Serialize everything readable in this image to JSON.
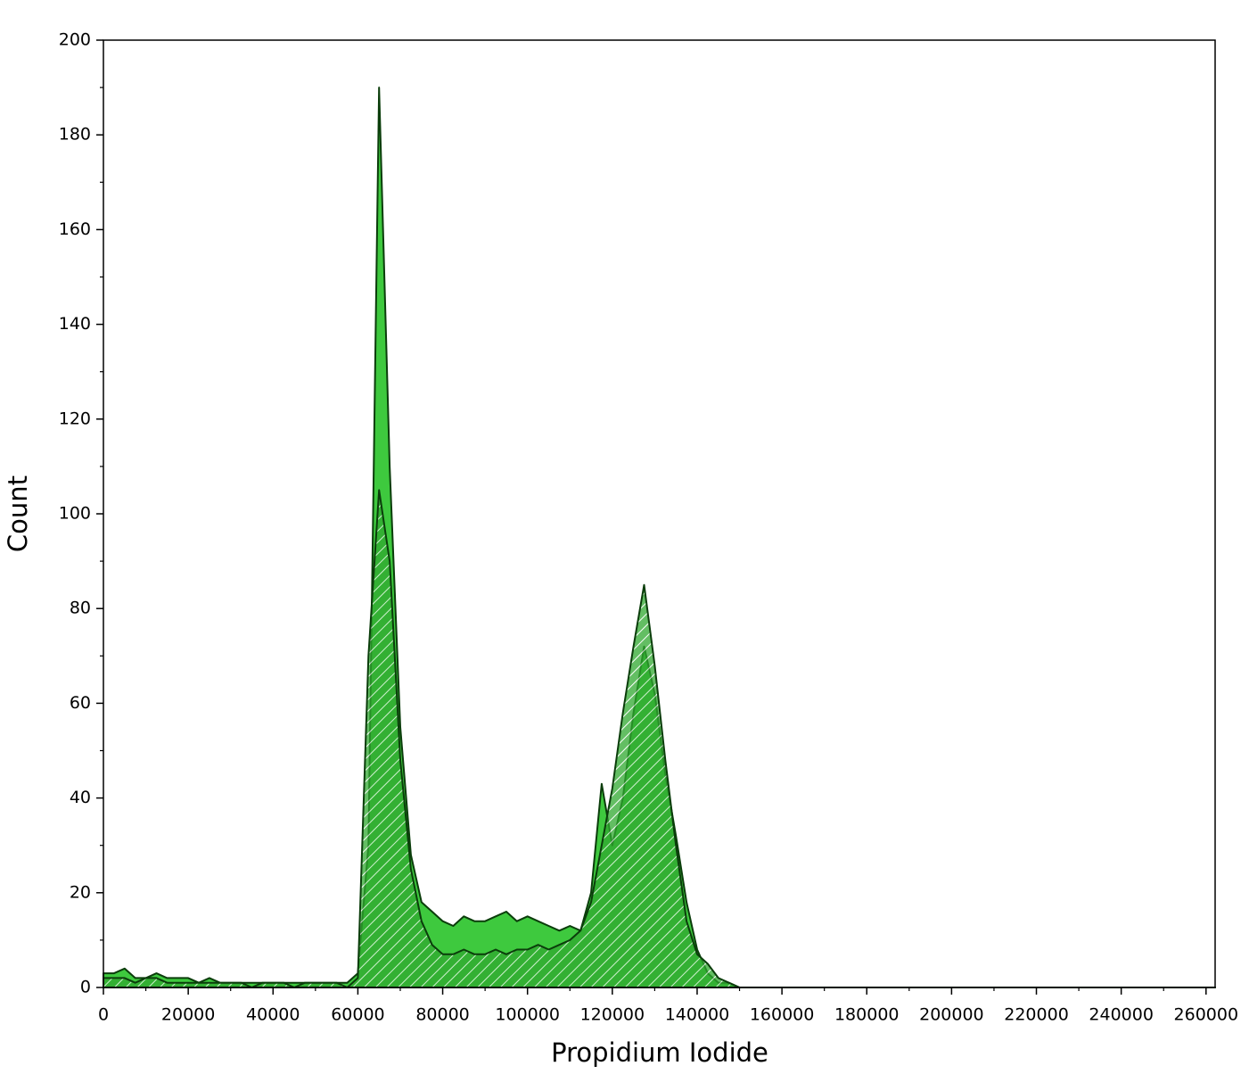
{
  "chart_data": {
    "type": "area",
    "xlabel": "Propidium Iodide",
    "ylabel": "Count",
    "x": [
      0,
      2500,
      5000,
      7500,
      10000,
      12500,
      15000,
      17500,
      20000,
      22500,
      25000,
      27500,
      30000,
      32500,
      35000,
      37500,
      40000,
      42500,
      45000,
      47500,
      50000,
      52500,
      55000,
      57500,
      60000,
      62500,
      65000,
      67500,
      70000,
      72500,
      75000,
      77500,
      80000,
      82500,
      85000,
      87500,
      90000,
      92500,
      95000,
      97500,
      100000,
      102500,
      105000,
      107500,
      110000,
      112500,
      115000,
      117500,
      120000,
      122500,
      125000,
      127500,
      130000,
      132500,
      135000,
      137500,
      140000,
      142500,
      145000,
      147500,
      150000,
      152500,
      155000,
      157500,
      160000,
      262144
    ],
    "series": [
      {
        "color": "#3ec93e",
        "hatch": false,
        "values": [
          3,
          3,
          4,
          2,
          2,
          3,
          2,
          2,
          2,
          1,
          2,
          1,
          1,
          1,
          1,
          1,
          1,
          1,
          1,
          1,
          1,
          1,
          1,
          1,
          3,
          30,
          190,
          110,
          55,
          28,
          18,
          16,
          14,
          13,
          15,
          14,
          14,
          15,
          16,
          14,
          15,
          14,
          13,
          12,
          13,
          12,
          20,
          43,
          30,
          40,
          58,
          72,
          62,
          45,
          32,
          18,
          8,
          3,
          1,
          1,
          0,
          0,
          0,
          0,
          0,
          0
        ]
      },
      {
        "color": "#2fa82f",
        "hatch": true,
        "values": [
          2,
          2,
          2,
          1,
          2,
          2,
          1,
          1,
          1,
          1,
          1,
          1,
          1,
          1,
          0,
          1,
          1,
          1,
          0,
          1,
          1,
          1,
          1,
          0,
          2,
          70,
          105,
          90,
          48,
          25,
          14,
          9,
          7,
          7,
          8,
          7,
          7,
          8,
          7,
          8,
          8,
          9,
          8,
          9,
          10,
          12,
          18,
          30,
          42,
          58,
          72,
          85,
          68,
          48,
          30,
          14,
          7,
          5,
          2,
          1,
          0,
          0,
          0,
          0,
          0,
          0
        ]
      }
    ],
    "xlim": [
      0,
      262144
    ],
    "ylim": [
      0,
      200
    ],
    "xticks": [
      0,
      20000,
      40000,
      60000,
      80000,
      100000,
      120000,
      140000,
      160000,
      180000,
      200000,
      220000,
      240000,
      260000
    ],
    "yticks": [
      0,
      20,
      40,
      60,
      80,
      100,
      120,
      140,
      160,
      180,
      200
    ],
    "xminorticks": [
      10000,
      30000,
      50000,
      70000,
      90000,
      110000,
      130000,
      150000,
      170000,
      190000,
      210000,
      230000,
      250000
    ],
    "yminorticks": [
      10,
      30,
      50,
      70,
      90,
      110,
      130,
      150,
      170,
      190
    ],
    "line_color": "#0b3d0b"
  }
}
